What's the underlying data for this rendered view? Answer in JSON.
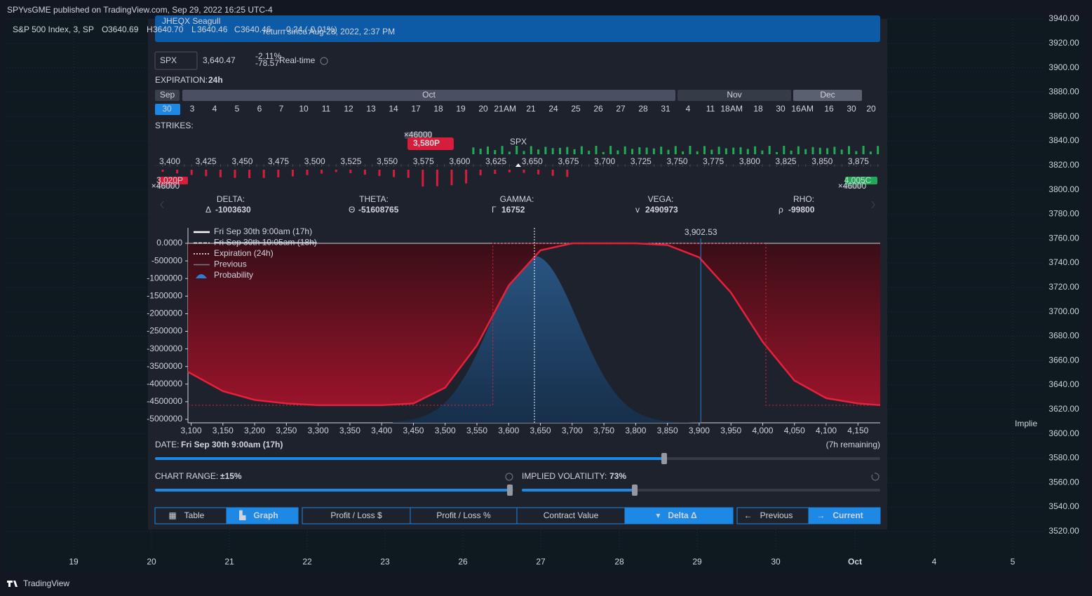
{
  "header": {
    "published": "SPYvsGME published on TradingView.com, Sep 29, 2022 16:25 UTC-4"
  },
  "legend": {
    "symbol": "S&P 500 Index, 3, SP",
    "o_label": "O",
    "o": "3640.69",
    "h_label": "H",
    "h": "3640.70",
    "l_label": "L",
    "l": "3640.46",
    "c_label": "C",
    "c": "3640.46",
    "change": "-0.24 (-0.01%)"
  },
  "price_axis": [
    "3940.00",
    "3920.00",
    "3900.00",
    "3880.00",
    "3860.00",
    "3840.00",
    "3820.00",
    "3800.00",
    "3780.00",
    "3760.00",
    "3740.00",
    "3720.00",
    "3700.00",
    "3680.00",
    "3660.00",
    "3640.00",
    "3620.00",
    "3600.00",
    "3580.00",
    "3560.00",
    "3540.00",
    "3520.00"
  ],
  "time_axis": [
    "19",
    "20",
    "21",
    "22",
    "23",
    "26",
    "27",
    "28",
    "29",
    "30",
    "Oct",
    "4",
    "5"
  ],
  "side_text": "Implie",
  "footer": {
    "brand": "TradingView"
  },
  "panel": {
    "title": "JHEQX Seagull",
    "subtitle": "return since Aug 28, 2022, 2:37 PM",
    "symbol": "SPX",
    "price": "3,640.47",
    "change_pct": "-2.11%",
    "change_abs": "-78.57",
    "realtime": "Real-time",
    "expiration_label": "EXPIRATION:",
    "expiration_value": "24h",
    "months": [
      "Sep",
      "Oct",
      "Nov",
      "Dec"
    ],
    "dates": [
      {
        "day": "30"
      },
      {
        "day": "3"
      },
      {
        "day": "4"
      },
      {
        "day": "5"
      },
      {
        "day": "6"
      },
      {
        "day": "7"
      },
      {
        "day": "10"
      },
      {
        "day": "11"
      },
      {
        "day": "12"
      },
      {
        "day": "13"
      },
      {
        "day": "14"
      },
      {
        "day": "17"
      },
      {
        "day": "18"
      },
      {
        "day": "19"
      },
      {
        "day": "20"
      },
      {
        "day": "21",
        "tag": "AM"
      },
      {
        "day": "21"
      },
      {
        "day": "24"
      },
      {
        "day": "25"
      },
      {
        "day": "26"
      },
      {
        "day": "27"
      },
      {
        "day": "28"
      },
      {
        "day": "31"
      },
      {
        "day": "4"
      },
      {
        "day": "11"
      },
      {
        "day": "18",
        "tag": "AM"
      },
      {
        "day": "18"
      },
      {
        "day": "30"
      },
      {
        "day": "16",
        "tag": "AM"
      },
      {
        "day": "16"
      },
      {
        "day": "30"
      },
      {
        "day": "20"
      }
    ],
    "strikes_label": "STRIKES:",
    "strikes": [
      "3,400",
      "3,425",
      "3,450",
      "3,475",
      "3,500",
      "3,525",
      "3,550",
      "3,575",
      "3,600",
      "3,625",
      "3,650",
      "3,675",
      "3,700",
      "3,725",
      "3,750",
      "3,775",
      "3,800",
      "3,825",
      "3,850",
      "3,875"
    ],
    "spx_marker": "SPX",
    "badges": {
      "main": "3,580P",
      "main_qty": "×46000",
      "left": "3,020P",
      "left_qty": "×46000",
      "right": "4,005C",
      "right_qty": "×46000"
    },
    "greeks": [
      {
        "label": "DELTA:",
        "symbol": "Δ",
        "value": "-1003630"
      },
      {
        "label": "THETA:",
        "symbol": "Θ",
        "value": "-51608765"
      },
      {
        "label": "GAMMA:",
        "symbol": "Γ",
        "value": "16752"
      },
      {
        "label": "VEGA:",
        "symbol": "v",
        "value": "2490973"
      },
      {
        "label": "RHO:",
        "symbol": "ρ",
        "value": "-99800"
      }
    ],
    "date_label": "DATE:",
    "date_value": "Fri Sep 30th 9:00am (17h)",
    "remaining": "(7h remaining)",
    "range_label": "CHART RANGE:",
    "range_value": "±15%",
    "iv_label": "IMPLIED VOLATILITY:",
    "iv_value": "73%",
    "buttons": [
      "Table",
      "Graph",
      "Profit / Loss $",
      "Profit / Loss %",
      "Contract Value",
      "Delta Δ",
      "Previous",
      "Current"
    ]
  },
  "chart_data": {
    "type": "line",
    "legend_entries": [
      "Fri Sep 30th 9:00am (17h)",
      "Fri Sep 30th 10:05am (18h)",
      "Expiration (24h)",
      "Previous",
      "Probability"
    ],
    "xlim": [
      3095,
      4185
    ],
    "ylim": [
      -5000000,
      0
    ],
    "yticks": [
      {
        "value": 0,
        "label": "0.0000"
      },
      -500000,
      -1000000,
      -1500000,
      -2000000,
      -2500000,
      -3000000,
      -3500000,
      -4000000,
      -4500000,
      -5000000
    ],
    "xticks": [
      {
        "value": 3100,
        "label": "3,100"
      },
      {
        "value": 3150,
        "label": "3,150"
      },
      {
        "value": 3200,
        "label": "3,200"
      },
      {
        "value": 3250,
        "label": "3,250"
      },
      {
        "value": 3300,
        "label": "3,300"
      },
      {
        "value": 3350,
        "label": "3,350"
      },
      {
        "value": 3400,
        "label": "3,400"
      },
      {
        "value": 3450,
        "label": "3,450"
      },
      {
        "value": 3500,
        "label": "3,500"
      },
      {
        "value": 3550,
        "label": "3,550"
      },
      {
        "value": 3600,
        "label": "3,600"
      },
      {
        "value": 3650,
        "label": "3,650"
      },
      {
        "value": 3700,
        "label": "3,700"
      },
      {
        "value": 3750,
        "label": "3,750"
      },
      {
        "value": 3800,
        "label": "3,800"
      },
      {
        "value": 3850,
        "label": "3,850"
      },
      {
        "value": 3900,
        "label": "3,900"
      },
      {
        "value": 3950,
        "label": "3,950"
      },
      {
        "value": 4000,
        "label": "4,000"
      },
      {
        "value": 4050,
        "label": "4,050"
      },
      {
        "value": 4100,
        "label": "4,100"
      },
      {
        "value": 4150,
        "label": "4,150"
      }
    ],
    "marker": {
      "value": 3902.53,
      "label": "3,902.53"
    },
    "series": [
      {
        "name": "Fri Sep 30th 9:00am (17h)",
        "color": "#e5213b",
        "x": [
          3095,
          3150,
          3200,
          3250,
          3300,
          3350,
          3400,
          3450,
          3500,
          3550,
          3600,
          3650,
          3700,
          3750,
          3800,
          3850,
          3900,
          3950,
          4000,
          4050,
          4100,
          4150,
          4185
        ],
        "values": [
          -3650000,
          -4200000,
          -4450000,
          -4550000,
          -4600000,
          -4600000,
          -4600000,
          -4550000,
          -4100000,
          -2900000,
          -1200000,
          -200000,
          0,
          0,
          0,
          -50000,
          -400000,
          -1400000,
          -2800000,
          -3900000,
          -4400000,
          -4550000,
          -4600000
        ]
      },
      {
        "name": "Expiration (24h)",
        "color": "#c8283c",
        "x": [
          3095,
          3575,
          3575,
          4005,
          4005,
          4185
        ],
        "values": [
          -4600000,
          -4600000,
          0,
          0,
          -4600000,
          -4600000
        ]
      }
    ]
  }
}
